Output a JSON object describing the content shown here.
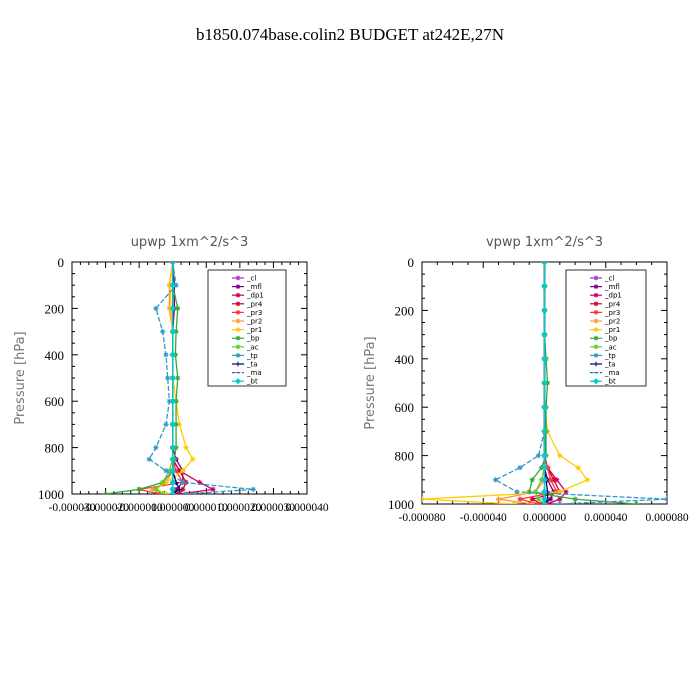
{
  "figure_title": "b1850.074base.colin2  BUDGET at242E,27N",
  "chart_data": [
    {
      "type": "line",
      "title": "upwp   1xm^2/s^3",
      "ylabel": "Pressure [hPa]",
      "xlim": [
        -3e-05,
        4e-05
      ],
      "ylim": [
        1000,
        0
      ],
      "ytick_labels": [
        "0",
        "200",
        "400",
        "600",
        "800",
        "1000"
      ],
      "ytick_values": [
        0,
        200,
        400,
        600,
        800,
        1000
      ],
      "xtick_labels": [
        "-0.000030",
        "-0.000020",
        "-0.000010",
        "0.000000",
        "0.000010",
        "0.000020",
        "0.000030",
        "0.000040"
      ],
      "xtick_values": [
        -3e-05,
        -2e-05,
        -1e-05,
        0,
        1e-05,
        2e-05,
        3e-05,
        4e-05
      ],
      "legend_position": "top-right",
      "series": [
        {
          "name": "_cl",
          "color": "#9933cc",
          "marker": "star",
          "x": [
            0,
            0,
            0,
            0,
            0,
            0,
            0,
            0,
            0,
            0,
            0,
            0,
            0,
            0
          ],
          "y": [
            0,
            100,
            200,
            300,
            400,
            500,
            600,
            700,
            800,
            850,
            900,
            950,
            980,
            1000
          ]
        },
        {
          "name": "_mfl",
          "color": "#800080",
          "marker": "star",
          "x": [
            0,
            5e-07,
            5e-07,
            0,
            0,
            0,
            0,
            0,
            0,
            1e-06,
            3e-06,
            3e-06,
            1e-06,
            0
          ],
          "y": [
            0,
            100,
            200,
            300,
            400,
            500,
            600,
            700,
            800,
            850,
            900,
            950,
            980,
            1000
          ]
        },
        {
          "name": "_dp1",
          "color": "#cc0066",
          "marker": "star",
          "x": [
            0,
            0,
            0,
            0,
            0,
            0,
            0,
            0,
            0,
            0,
            2e-06,
            8e-06,
            1.2e-05,
            2e-06
          ],
          "y": [
            0,
            100,
            200,
            300,
            400,
            500,
            600,
            700,
            800,
            850,
            900,
            950,
            980,
            1000
          ]
        },
        {
          "name": "_pr4",
          "color": "#cc0033",
          "marker": "star",
          "x": [
            0,
            0,
            0,
            0,
            0,
            0,
            0,
            0,
            0,
            0,
            2e-06,
            4e-06,
            3e-06,
            1e-06
          ],
          "y": [
            0,
            100,
            200,
            300,
            400,
            500,
            600,
            700,
            800,
            850,
            900,
            950,
            980,
            1000
          ]
        },
        {
          "name": "_pr3",
          "color": "#ff3333",
          "marker": "star",
          "x": [
            0,
            0,
            0,
            0,
            0,
            0,
            0,
            0,
            0,
            0,
            1e-06,
            3e-06,
            -1e-05,
            -4e-06
          ],
          "y": [
            0,
            100,
            200,
            300,
            400,
            500,
            600,
            700,
            800,
            850,
            900,
            950,
            980,
            1000
          ]
        },
        {
          "name": "_pr2",
          "color": "#ff9933",
          "marker": "star",
          "x": [
            0,
            -1e-06,
            -1e-06,
            0,
            0,
            0,
            0,
            0,
            0,
            0,
            0,
            -2e-06,
            -6e-06,
            -2e-06
          ],
          "y": [
            0,
            100,
            200,
            300,
            400,
            500,
            600,
            700,
            800,
            850,
            900,
            950,
            980,
            1000
          ]
        },
        {
          "name": "_pr1",
          "color": "#ffcc00",
          "marker": "star",
          "x": [
            0,
            -8e-07,
            -5e-07,
            0,
            0,
            0,
            1e-06,
            2e-06,
            4e-06,
            6e-06,
            3e-06,
            -2e-06,
            -5e-06,
            -2e-06
          ],
          "y": [
            0,
            100,
            200,
            300,
            400,
            500,
            600,
            700,
            800,
            850,
            900,
            950,
            980,
            1000
          ]
        },
        {
          "name": "_bp",
          "color": "#33aa33",
          "marker": "star",
          "x": [
            0,
            0,
            1.5e-06,
            1e-06,
            8e-07,
            1.5e-06,
            1e-06,
            1e-06,
            1e-06,
            5e-07,
            0,
            -3e-06,
            -1e-05,
            -2e-05
          ],
          "y": [
            0,
            100,
            200,
            300,
            400,
            500,
            600,
            700,
            800,
            850,
            900,
            950,
            980,
            1000
          ]
        },
        {
          "name": "_ac",
          "color": "#66cc33",
          "marker": "star",
          "x": [
            0,
            0,
            0,
            0,
            0,
            0,
            0,
            0,
            0,
            0,
            -1e-06,
            -3e-06,
            -5e-06,
            -3e-06
          ],
          "y": [
            0,
            100,
            200,
            300,
            400,
            500,
            600,
            700,
            800,
            850,
            900,
            950,
            980,
            1000
          ]
        },
        {
          "name": "_tp",
          "color": "#3399cc",
          "marker": "star",
          "x": [
            0,
            1e-06,
            -5e-06,
            -3e-06,
            -2e-06,
            -1.5e-06,
            -1e-06,
            -2e-06,
            -5e-06,
            -7e-06,
            -2e-06,
            3e-06,
            2.4e-05,
            4e-06
          ],
          "y": [
            0,
            100,
            200,
            300,
            400,
            500,
            600,
            700,
            800,
            850,
            900,
            950,
            980,
            1000
          ]
        },
        {
          "name": "_ta",
          "color": "#000066",
          "marker": "plus",
          "x": [
            0,
            0,
            0,
            0,
            0,
            0,
            0,
            0,
            0,
            0,
            0,
            1e-06,
            2e-06,
            0
          ],
          "y": [
            0,
            100,
            200,
            300,
            400,
            500,
            600,
            700,
            800,
            850,
            900,
            950,
            980,
            1000
          ]
        },
        {
          "name": "_ma",
          "color": "#3366aa",
          "marker": "dash",
          "x": [
            0,
            0,
            0,
            0,
            0,
            0,
            0,
            0,
            0,
            0,
            0,
            0,
            0,
            0
          ],
          "y": [
            0,
            100,
            200,
            300,
            400,
            500,
            600,
            700,
            800,
            850,
            900,
            950,
            980,
            1000
          ]
        },
        {
          "name": "_bt",
          "color": "#00cccc",
          "marker": "diamond",
          "x": [
            0,
            0,
            0,
            0,
            0,
            0,
            0,
            0,
            0,
            0,
            0,
            0,
            0,
            0
          ],
          "y": [
            0,
            100,
            200,
            300,
            400,
            500,
            600,
            700,
            800,
            850,
            900,
            950,
            980,
            1000
          ]
        }
      ]
    },
    {
      "type": "line",
      "title": "vpwp   1xm^2/s^3",
      "ylabel": "Pressure [hPa]",
      "xlim": [
        -8e-05,
        8e-05
      ],
      "ylim": [
        1000,
        0
      ],
      "ytick_labels": [
        "0",
        "200",
        "400",
        "600",
        "800",
        "1000"
      ],
      "ytick_values": [
        0,
        200,
        400,
        600,
        800,
        1000
      ],
      "xtick_labels": [
        "-0.000080",
        "-0.000040",
        "0.000000",
        "0.000040",
        "0.000080"
      ],
      "xtick_values": [
        -8e-05,
        -4e-05,
        0,
        4e-05,
        8e-05
      ],
      "legend_position": "top-right",
      "series": [
        {
          "name": "_cl",
          "color": "#9933cc",
          "marker": "star",
          "x": [
            0,
            0,
            0,
            0,
            0,
            0,
            0,
            0,
            0,
            0,
            0,
            0,
            0,
            0
          ],
          "y": [
            0,
            100,
            200,
            300,
            400,
            500,
            600,
            700,
            800,
            850,
            900,
            950,
            980,
            1000
          ]
        },
        {
          "name": "_mfl",
          "color": "#800080",
          "marker": "star",
          "x": [
            0,
            0,
            0,
            0,
            0,
            0,
            0,
            0,
            0,
            0,
            2e-06,
            6e-06,
            4e-06,
            0
          ],
          "y": [
            0,
            100,
            200,
            300,
            400,
            500,
            600,
            700,
            800,
            850,
            900,
            950,
            980,
            1000
          ]
        },
        {
          "name": "_dp1",
          "color": "#cc0066",
          "marker": "star",
          "x": [
            0,
            0,
            0,
            0,
            0,
            0,
            0,
            0,
            0,
            2e-06,
            8e-06,
            1.4e-05,
            1e-05,
            2e-06
          ],
          "y": [
            0,
            100,
            200,
            300,
            400,
            500,
            600,
            700,
            800,
            850,
            900,
            950,
            980,
            1000
          ]
        },
        {
          "name": "_pr4",
          "color": "#cc0033",
          "marker": "star",
          "x": [
            0,
            0,
            0,
            0,
            0,
            0,
            0,
            0,
            0,
            2e-06,
            6e-06,
            1e-05,
            -8e-06,
            -2e-06
          ],
          "y": [
            0,
            100,
            200,
            300,
            400,
            500,
            600,
            700,
            800,
            850,
            900,
            950,
            980,
            1000
          ]
        },
        {
          "name": "_pr3",
          "color": "#ff3333",
          "marker": "star",
          "x": [
            0,
            0,
            0,
            0,
            0,
            0,
            0,
            0,
            0,
            2e-06,
            4e-06,
            8e-06,
            -1.6e-05,
            -4e-06
          ],
          "y": [
            0,
            100,
            200,
            300,
            400,
            500,
            600,
            700,
            800,
            850,
            900,
            950,
            980,
            1000
          ]
        },
        {
          "name": "_pr2",
          "color": "#ff9933",
          "marker": "star",
          "x": [
            0,
            0,
            0,
            0,
            0,
            0,
            0,
            0,
            0,
            0,
            0,
            -6e-06,
            -3e-05,
            -8e-06
          ],
          "y": [
            0,
            100,
            200,
            300,
            400,
            500,
            600,
            700,
            800,
            850,
            900,
            950,
            980,
            1000
          ]
        },
        {
          "name": "_pr1",
          "color": "#ffcc00",
          "marker": "star",
          "x": [
            0,
            0,
            0,
            0,
            0,
            0,
            0,
            2e-06,
            1e-05,
            2.2e-05,
            2.8e-05,
            1e-05,
            -8e-05,
            -2e-05
          ],
          "y": [
            0,
            100,
            200,
            300,
            400,
            500,
            600,
            700,
            800,
            850,
            900,
            950,
            980,
            1000
          ]
        },
        {
          "name": "_bp",
          "color": "#33aa33",
          "marker": "star",
          "x": [
            0,
            0,
            0,
            0,
            1e-06,
            2e-06,
            1e-06,
            1e-06,
            1e-06,
            -2e-06,
            -8e-06,
            -1e-05,
            2e-05,
            6e-05
          ],
          "y": [
            0,
            100,
            200,
            300,
            400,
            500,
            600,
            700,
            800,
            850,
            900,
            950,
            980,
            1000
          ]
        },
        {
          "name": "_ac",
          "color": "#66cc33",
          "marker": "star",
          "x": [
            0,
            0,
            0,
            0,
            0,
            0,
            0,
            0,
            0,
            0,
            -2e-06,
            -6e-06,
            -4e-06,
            0
          ],
          "y": [
            0,
            100,
            200,
            300,
            400,
            500,
            600,
            700,
            800,
            850,
            900,
            950,
            980,
            1000
          ]
        },
        {
          "name": "_tp",
          "color": "#3399cc",
          "marker": "star",
          "x": [
            0,
            0,
            0,
            0,
            0,
            0,
            0,
            0,
            -4e-06,
            -1.6e-05,
            -3.2e-05,
            -1.8e-05,
            8e-05,
            1e-05
          ],
          "y": [
            0,
            100,
            200,
            300,
            400,
            500,
            600,
            700,
            800,
            850,
            900,
            950,
            980,
            1000
          ]
        },
        {
          "name": "_ta",
          "color": "#000066",
          "marker": "plus",
          "x": [
            0,
            0,
            0,
            0,
            0,
            0,
            0,
            0,
            0,
            0,
            1e-06,
            2e-06,
            2e-06,
            0
          ],
          "y": [
            0,
            100,
            200,
            300,
            400,
            500,
            600,
            700,
            800,
            850,
            900,
            950,
            980,
            1000
          ]
        },
        {
          "name": "_ma",
          "color": "#3366aa",
          "marker": "dash",
          "x": [
            0,
            0,
            0,
            0,
            0,
            0,
            0,
            0,
            0,
            0,
            0,
            0,
            0,
            0
          ],
          "y": [
            0,
            100,
            200,
            300,
            400,
            500,
            600,
            700,
            800,
            850,
            900,
            950,
            980,
            1000
          ]
        },
        {
          "name": "_bt",
          "color": "#00cccc",
          "marker": "diamond",
          "x": [
            0,
            0,
            0,
            0,
            0,
            0,
            0,
            0,
            0,
            0,
            0,
            0,
            0,
            0
          ],
          "y": [
            0,
            100,
            200,
            300,
            400,
            500,
            600,
            700,
            800,
            850,
            900,
            950,
            980,
            1000
          ]
        }
      ]
    }
  ]
}
